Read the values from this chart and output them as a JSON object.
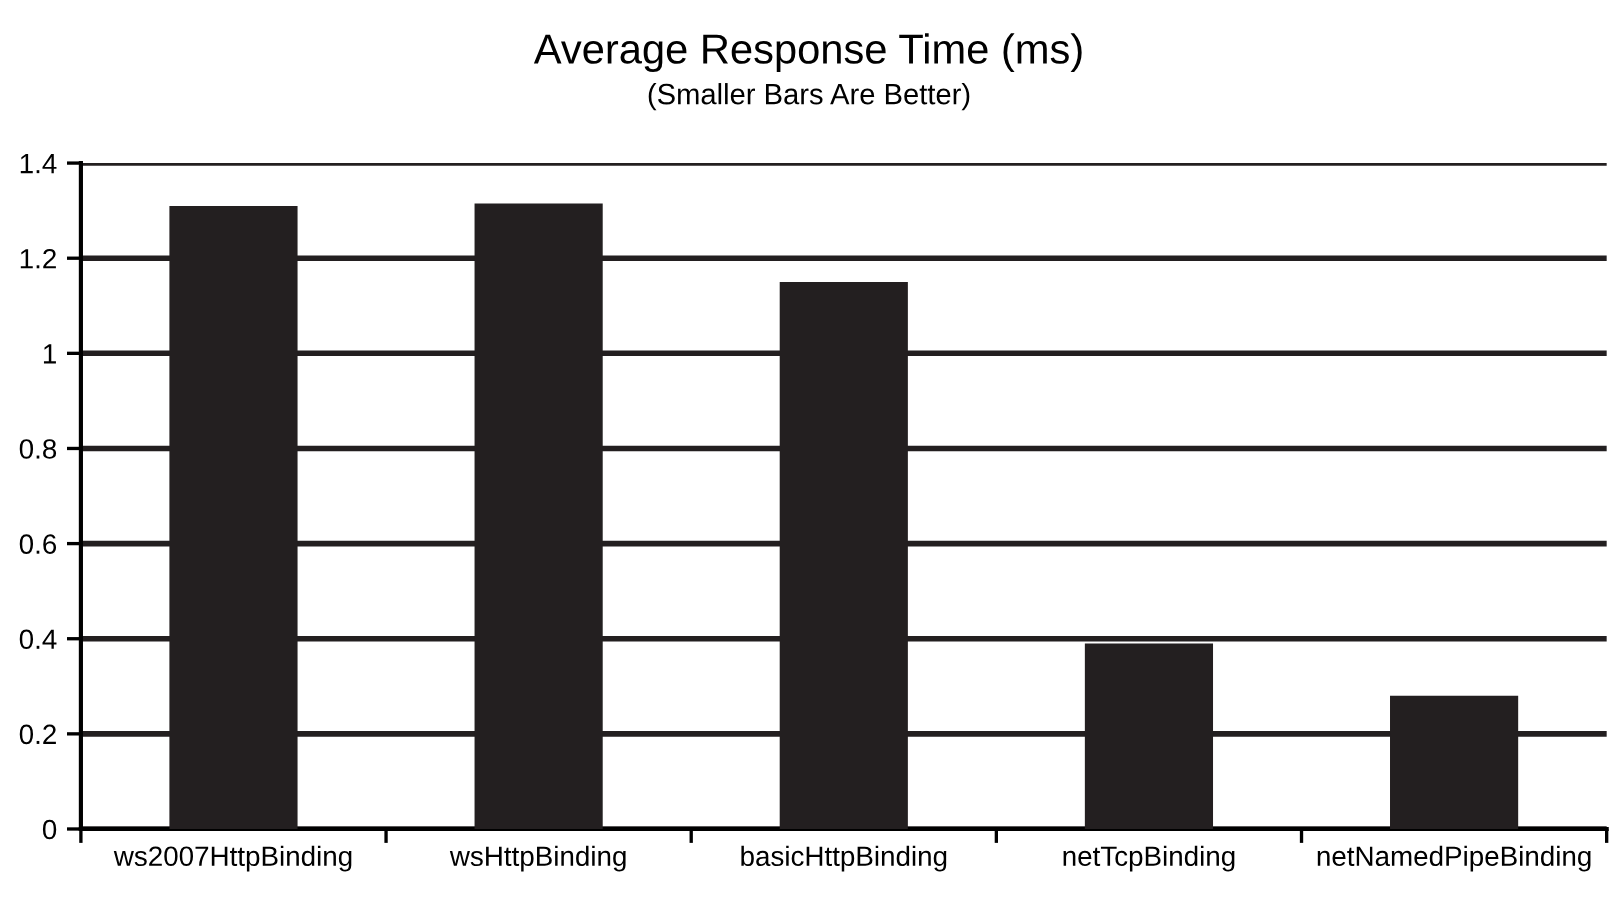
{
  "chart_data": {
    "type": "bar",
    "title": "Average Response Time (ms)",
    "subtitle": "(Smaller Bars Are Better)",
    "categories": [
      "ws2007HttpBinding",
      "wsHttpBinding",
      "basicHttpBinding",
      "netTcpBinding",
      "netNamedPipeBinding"
    ],
    "values": [
      1.31,
      1.315,
      1.15,
      0.39,
      0.28
    ],
    "color": "#231f20",
    "ylim": [
      0,
      1.4
    ],
    "yticks": [
      0,
      0.2,
      0.4,
      0.6,
      0.8,
      1,
      1.2,
      1.4
    ],
    "grid": "y",
    "legend": false
  }
}
